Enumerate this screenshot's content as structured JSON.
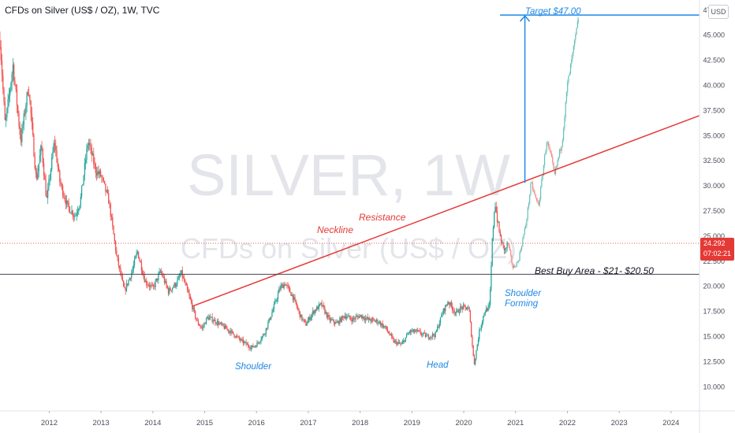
{
  "header": {
    "title": "CFDs on Silver (US$ / OZ), 1W, TVC"
  },
  "currency_button": "USD",
  "watermark": {
    "symbol": "SILVER, 1W",
    "description": "CFDs on Silver (US$ / OZ)"
  },
  "colors": {
    "up": "#26a69a",
    "down": "#ef5350",
    "neckline": "#e53935",
    "projection": "#1e88e5",
    "price_label": "#e53935"
  },
  "price_label": {
    "price": "24.292",
    "countdown": "07:02:21"
  },
  "annotations": {
    "target": "Target $47.00",
    "neckline": "Neckline",
    "resistance": "Resistance",
    "best_buy": "Best Buy Area - $21- $20.50",
    "shoulder_forming_1": "Shoulder",
    "shoulder_forming_2": "Forming",
    "shoulder": "Shoulder",
    "head": "Head"
  },
  "chart_data": {
    "type": "candlestick",
    "title": "CFDs on Silver (US$ / OZ), 1W, TVC",
    "xlabel": "",
    "ylabel": "",
    "currency": "USD",
    "y_ticks": [
      "10.000",
      "12.500",
      "15.000",
      "17.500",
      "20.000",
      "22.500",
      "25.000",
      "27.500",
      "30.000",
      "32.500",
      "35.000",
      "37.500",
      "40.000",
      "42.500",
      "45.000",
      "47.500"
    ],
    "x_ticks": [
      "2012",
      "2013",
      "2014",
      "2015",
      "2016",
      "2017",
      "2018",
      "2019",
      "2020",
      "2021",
      "2022",
      "2023",
      "2024"
    ],
    "ylim": [
      7.6,
      48.5
    ],
    "xlim": [
      2011.05,
      2024.55
    ],
    "last_price": 24.292,
    "price_path": [
      [
        2011.05,
        44.5
      ],
      [
        2011.15,
        36.0
      ],
      [
        2011.3,
        42.0
      ],
      [
        2011.45,
        34.5
      ],
      [
        2011.6,
        40.0
      ],
      [
        2011.75,
        30.5
      ],
      [
        2011.85,
        34.0
      ],
      [
        2011.95,
        28.5
      ],
      [
        2012.1,
        34.5
      ],
      [
        2012.2,
        30.5
      ],
      [
        2012.35,
        28.0
      ],
      [
        2012.5,
        27.0
      ],
      [
        2012.6,
        28.5
      ],
      [
        2012.75,
        34.5
      ],
      [
        2012.9,
        31.5
      ],
      [
        2013.0,
        31.0
      ],
      [
        2013.15,
        28.5
      ],
      [
        2013.3,
        23.0
      ],
      [
        2013.45,
        19.5
      ],
      [
        2013.6,
        21.5
      ],
      [
        2013.7,
        23.5
      ],
      [
        2013.85,
        20.5
      ],
      [
        2014.0,
        19.8
      ],
      [
        2014.15,
        21.5
      ],
      [
        2014.3,
        19.5
      ],
      [
        2014.45,
        20.3
      ],
      [
        2014.55,
        21.3
      ],
      [
        2014.7,
        19.0
      ],
      [
        2014.85,
        16.5
      ],
      [
        2014.95,
        15.8
      ],
      [
        2015.05,
        16.9
      ],
      [
        2015.15,
        16.7
      ],
      [
        2015.3,
        16.2
      ],
      [
        2015.5,
        15.5
      ],
      [
        2015.7,
        14.6
      ],
      [
        2015.9,
        13.9
      ],
      [
        2016.0,
        14.2
      ],
      [
        2016.15,
        15.3
      ],
      [
        2016.3,
        17.4
      ],
      [
        2016.45,
        19.8
      ],
      [
        2016.55,
        20.3
      ],
      [
        2016.7,
        19.0
      ],
      [
        2016.85,
        17.0
      ],
      [
        2016.95,
        16.2
      ],
      [
        2017.1,
        17.5
      ],
      [
        2017.25,
        18.2
      ],
      [
        2017.4,
        16.7
      ],
      [
        2017.55,
        16.3
      ],
      [
        2017.7,
        17.1
      ],
      [
        2017.85,
        16.7
      ],
      [
        2018.0,
        17.1
      ],
      [
        2018.15,
        16.7
      ],
      [
        2018.35,
        16.5
      ],
      [
        2018.5,
        15.8
      ],
      [
        2018.65,
        14.5
      ],
      [
        2018.8,
        14.2
      ],
      [
        2018.95,
        15.5
      ],
      [
        2019.1,
        15.5
      ],
      [
        2019.3,
        15.0
      ],
      [
        2019.45,
        15.2
      ],
      [
        2019.6,
        17.5
      ],
      [
        2019.7,
        18.5
      ],
      [
        2019.85,
        17.3
      ],
      [
        2019.95,
        17.9
      ],
      [
        2020.1,
        17.8
      ],
      [
        2020.2,
        12.2
      ],
      [
        2020.3,
        15.5
      ],
      [
        2020.4,
        17.5
      ],
      [
        2020.5,
        18.0
      ],
      [
        2020.55,
        24.5
      ],
      [
        2020.6,
        28.5
      ],
      [
        2020.65,
        26.5
      ],
      [
        2020.7,
        25.0
      ],
      [
        2020.75,
        24.0
      ],
      [
        2020.8,
        23.6
      ],
      [
        2020.85,
        24.3
      ]
    ],
    "projection_path": [
      [
        2020.85,
        24.3
      ],
      [
        2020.95,
        21.8
      ],
      [
        2021.05,
        22.5
      ],
      [
        2021.2,
        26.2
      ],
      [
        2021.3,
        30.3
      ],
      [
        2021.4,
        28.5
      ],
      [
        2021.45,
        28.2
      ],
      [
        2021.6,
        34.5
      ],
      [
        2021.7,
        32.5
      ],
      [
        2021.75,
        31.0
      ],
      [
        2021.9,
        34.5
      ],
      [
        2022.0,
        40.0
      ],
      [
        2022.1,
        43.0
      ],
      [
        2022.22,
        46.8
      ]
    ],
    "horizontal_lines": [
      {
        "label": "Best Buy Area - $21- $20.50",
        "value": 21.2
      },
      {
        "label": "Target $47.00",
        "value": 47.0
      }
    ],
    "neckline": [
      [
        2014.75,
        18.0
      ],
      [
        2024.55,
        37.0
      ]
    ],
    "target_arrow": {
      "x": 2021.18,
      "from": 30.3,
      "to": 47.0
    }
  }
}
